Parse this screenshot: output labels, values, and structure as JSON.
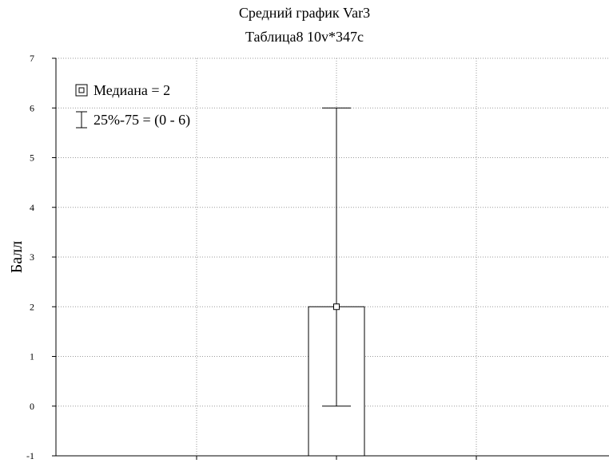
{
  "chart_data": {
    "type": "bar",
    "title": "Средний график Var3",
    "subtitle": "Таблица8 10v*347c",
    "xlabel": "",
    "ylabel": "Балл",
    "ylim": [
      -1,
      7
    ],
    "yticks": [
      -1,
      0,
      1,
      2,
      3,
      4,
      5,
      6,
      7
    ],
    "grid": true,
    "legend_position": "top-left",
    "legend": [
      {
        "marker": "median-square",
        "label": "Медиана = 2"
      },
      {
        "marker": "whisker",
        "label": "25%-75 = (0 - 6)"
      }
    ],
    "series": [
      {
        "median": 2,
        "q25": 0,
        "q75": 6
      }
    ]
  }
}
